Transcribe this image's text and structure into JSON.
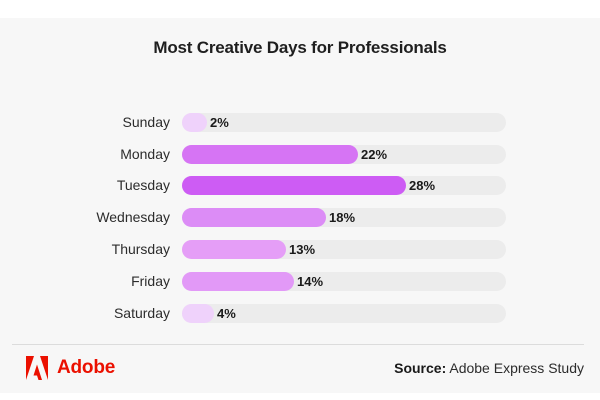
{
  "chart_data": {
    "type": "bar",
    "orientation": "horizontal",
    "title": "Most Creative Days for Professionals",
    "categories": [
      "Sunday",
      "Monday",
      "Tuesday",
      "Wednesday",
      "Thursday",
      "Friday",
      "Saturday"
    ],
    "values": [
      2,
      22,
      28,
      18,
      13,
      14,
      4
    ],
    "value_labels": [
      "2%",
      "22%",
      "28%",
      "18%",
      "13%",
      "14%",
      "4%"
    ],
    "unit": "%",
    "xlabel": "",
    "ylabel": "",
    "xlim": [
      0,
      40
    ],
    "grid": false,
    "legend": null,
    "colors": [
      "#efd2fb",
      "#d674f4",
      "#cd5cf4",
      "#dc8cf6",
      "#e59ef7",
      "#e299f7",
      "#efd2fb"
    ],
    "track_color": "#ececec"
  },
  "footer": {
    "brand": "Adobe",
    "brand_color": "#eb1000",
    "source_label": "Source:",
    "source_text": "Adobe Express Study"
  }
}
